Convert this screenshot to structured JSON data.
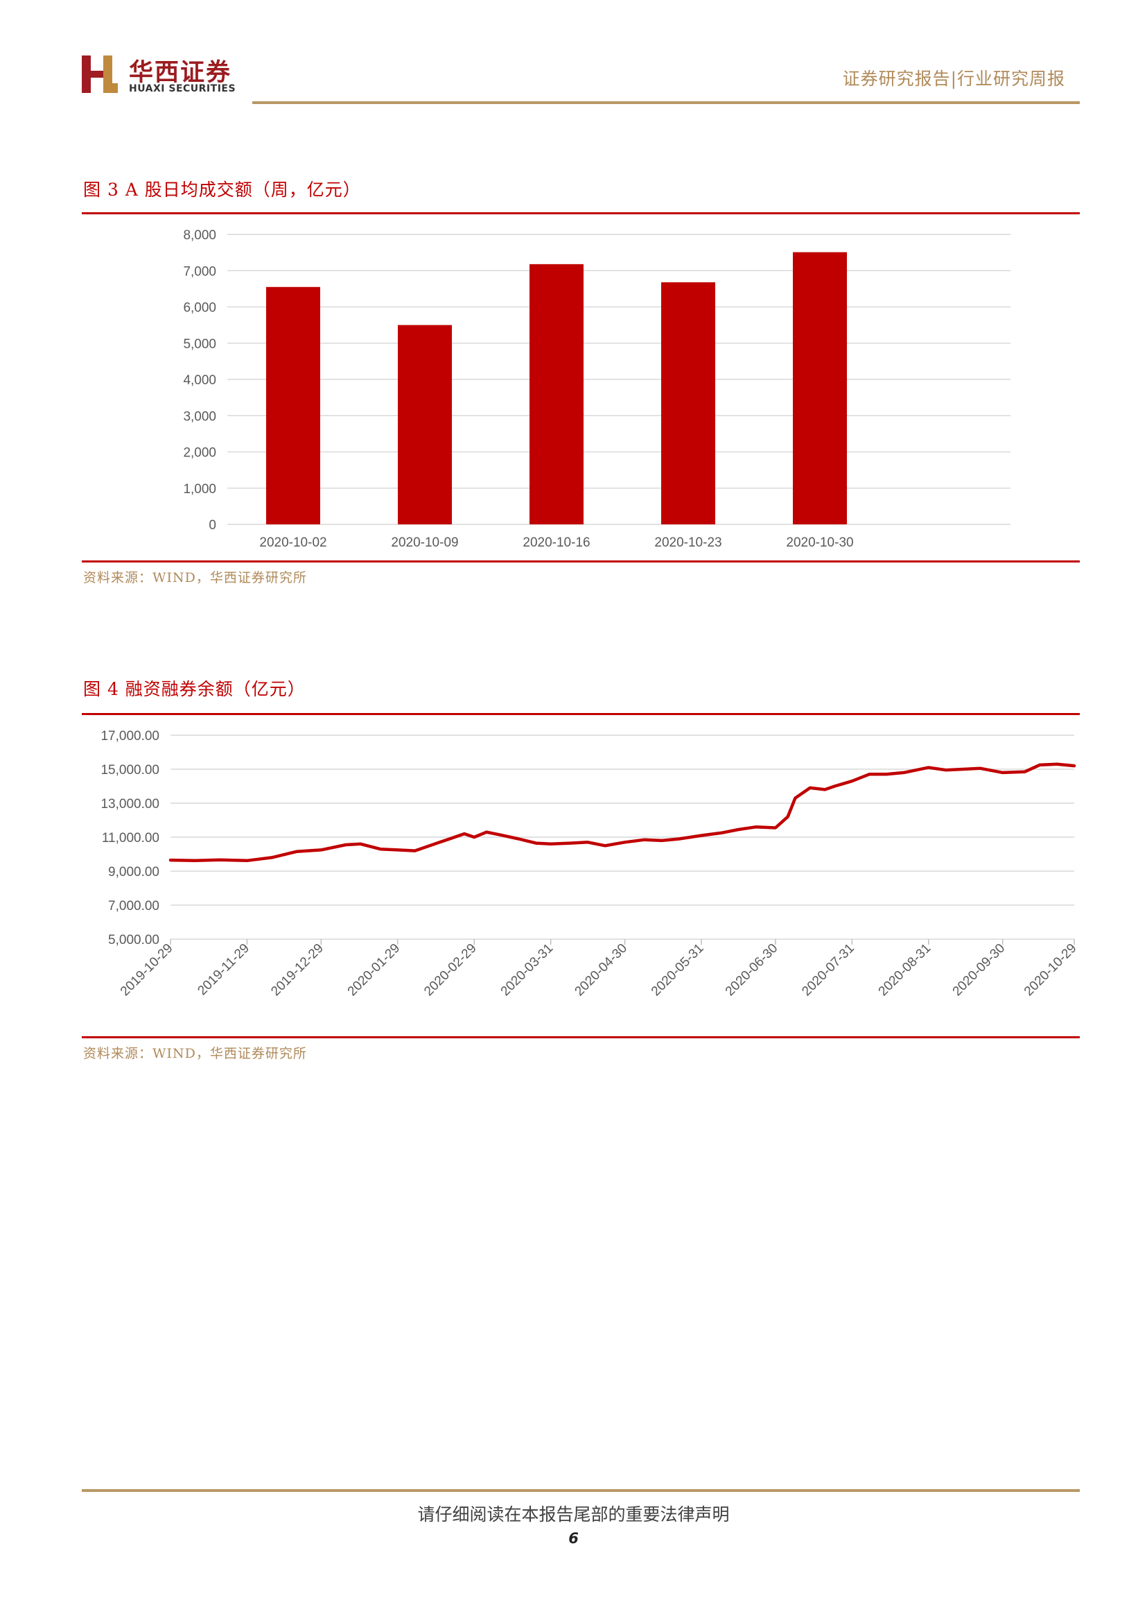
{
  "header": {
    "company_cn": "华西证券",
    "company_en": "HUAXI SECURITIES",
    "report_type": "证券研究报告|行业研究周报"
  },
  "figure3": {
    "title": "图 3  A 股日均成交额（周，亿元）",
    "source": "资料来源：WIND，华西证券研究所"
  },
  "figure4": {
    "title": "图 4  融资融券余额（亿元）",
    "source": "资料来源：WIND，华西证券研究所"
  },
  "footer": {
    "disclaimer": "请仔细阅读在本报告尾部的重要法律声明",
    "page_number": "6"
  },
  "colors": {
    "accent_red": "#c00000",
    "gold": "#b99765",
    "bar_fill": "#c00000"
  },
  "chart_data": [
    {
      "type": "bar",
      "categories": [
        "2020-10-02",
        "2020-10-09",
        "2020-10-16",
        "2020-10-23",
        "2020-10-30"
      ],
      "values": [
        6550,
        5500,
        7180,
        6680,
        7510
      ],
      "ylim": [
        0,
        8000
      ],
      "yticks": [
        0,
        1000,
        2000,
        3000,
        4000,
        5000,
        6000,
        7000,
        8000
      ],
      "ytick_labels": [
        "0",
        "1,000",
        "2,000",
        "3,000",
        "4,000",
        "5,000",
        "6,000",
        "7,000",
        "8,000"
      ],
      "grid": true,
      "color": "#c00000"
    },
    {
      "type": "line",
      "xlim": [
        "2019-10-29",
        "2020-10-29"
      ],
      "x_tick_labels": [
        "2019-10-29",
        "2019-11-29",
        "2019-12-29",
        "2020-01-29",
        "2020-02-29",
        "2020-03-31",
        "2020-04-30",
        "2020-05-31",
        "2020-06-30",
        "2020-07-31",
        "2020-08-31",
        "2020-09-30",
        "2020-10-29"
      ],
      "ylim": [
        5000,
        17000
      ],
      "yticks": [
        5000,
        7000,
        9000,
        11000,
        13000,
        15000,
        17000
      ],
      "ytick_labels": [
        "5,000.00",
        "7,000.00",
        "9,000.00",
        "11,000.00",
        "13,000.00",
        "15,000.00",
        "17,000.00"
      ],
      "grid": true,
      "color": "#c00000",
      "x": [
        "2019-10-29",
        "2019-11-08",
        "2019-11-18",
        "2019-11-29",
        "2019-12-09",
        "2019-12-19",
        "2019-12-29",
        "2020-01-08",
        "2020-01-14",
        "2020-01-22",
        "2020-01-29",
        "2020-02-05",
        "2020-02-12",
        "2020-02-19",
        "2020-02-25",
        "2020-02-29",
        "2020-03-05",
        "2020-03-10",
        "2020-03-18",
        "2020-03-25",
        "2020-03-31",
        "2020-04-08",
        "2020-04-15",
        "2020-04-22",
        "2020-04-30",
        "2020-05-08",
        "2020-05-15",
        "2020-05-22",
        "2020-05-31",
        "2020-06-08",
        "2020-06-15",
        "2020-06-22",
        "2020-06-30",
        "2020-07-05",
        "2020-07-08",
        "2020-07-14",
        "2020-07-20",
        "2020-07-24",
        "2020-07-31",
        "2020-08-07",
        "2020-08-14",
        "2020-08-21",
        "2020-08-31",
        "2020-09-07",
        "2020-09-14",
        "2020-09-21",
        "2020-09-30",
        "2020-10-09",
        "2020-10-15",
        "2020-10-22",
        "2020-10-29"
      ],
      "y": [
        9650,
        9620,
        9660,
        9620,
        9800,
        10150,
        10250,
        10550,
        10600,
        10300,
        10250,
        10200,
        10550,
        10900,
        11200,
        11000,
        11300,
        11150,
        10900,
        10650,
        10600,
        10650,
        10700,
        10500,
        10700,
        10850,
        10800,
        10900,
        11100,
        11250,
        11450,
        11600,
        11550,
        12200,
        13300,
        13900,
        13800,
        14000,
        14300,
        14700,
        14700,
        14800,
        15100,
        14950,
        15000,
        15050,
        14800,
        14850,
        15250,
        15300,
        15200
      ]
    }
  ]
}
